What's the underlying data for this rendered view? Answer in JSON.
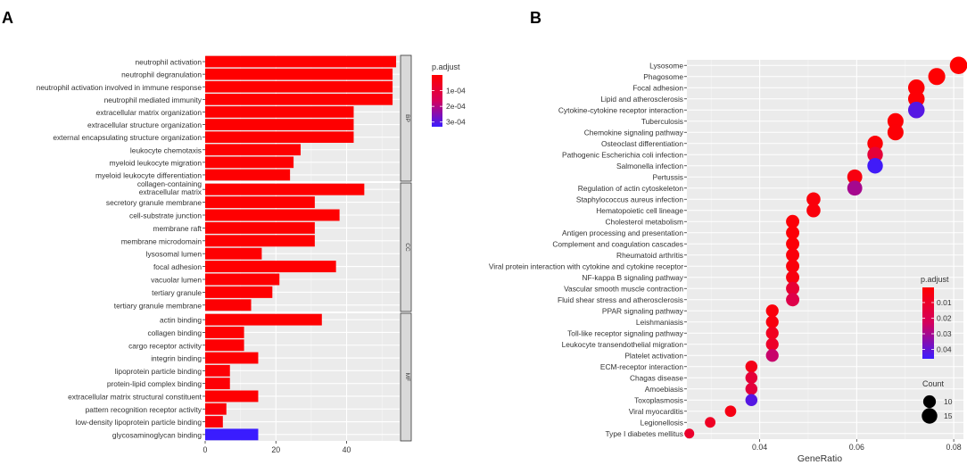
{
  "panel_labels": {
    "a": "A",
    "b": "B"
  },
  "chart_data": [
    {
      "type": "bar",
      "orientation": "horizontal",
      "panel": "A",
      "xlim": [
        0,
        55
      ],
      "xticks": [
        0,
        20,
        40
      ],
      "grid": true,
      "facets": [
        {
          "name": "BP",
          "categories": [
            "neutrophil activation",
            "neutrophil degranulation",
            "neutrophil activation involved in immune response",
            "neutrophil mediated immunity",
            "extracellular matrix organization",
            "extracellular structure organization",
            "external encapsulating structure organization",
            "leukocyte chemotaxis",
            "myeloid leukocyte migration",
            "myeloid leukocyte differentiation"
          ],
          "values": [
            54,
            53,
            53,
            53,
            42,
            42,
            42,
            27,
            25,
            24
          ],
          "p_adjust": [
            1e-07,
            1e-07,
            1e-07,
            1e-07,
            2e-06,
            2e-06,
            2e-06,
            3e-06,
            3e-06,
            3e-06
          ]
        },
        {
          "name": "CC",
          "categories": [
            "collagen-containing\nextracellular matrix",
            "secretory granule membrane",
            "cell-substrate junction",
            "membrane raft",
            "membrane microdomain",
            "lysosomal lumen",
            "focal adhesion",
            "vacuolar lumen",
            "tertiary granule",
            "tertiary granule membrane"
          ],
          "values": [
            45,
            31,
            38,
            31,
            31,
            16,
            37,
            21,
            19,
            13
          ],
          "p_adjust": [
            1e-07,
            2e-06,
            1e-06,
            2e-06,
            2e-06,
            3e-06,
            1e-06,
            4e-06,
            4e-06,
            6e-06
          ]
        },
        {
          "name": "MF",
          "categories": [
            "actin binding",
            "collagen binding",
            "cargo receptor activity",
            "integrin binding",
            "lipoprotein particle binding",
            "protein-lipid complex binding",
            "extracellular matrix structural constituent",
            "pattern recognition receptor activity",
            "low-density lipoprotein particle binding",
            "glycosaminoglycan binding"
          ],
          "values": [
            33,
            11,
            11,
            15,
            7,
            7,
            15,
            6,
            5,
            15
          ],
          "p_adjust": [
            2e-06,
            5e-06,
            5e-06,
            4e-06,
            8e-06,
            8e-06,
            4e-06,
            1.2e-05,
            1.8e-05,
            0.00033
          ]
        }
      ],
      "legend": {
        "title": "p.adjust",
        "labels": [
          "1e-04",
          "2e-04",
          "3e-04"
        ],
        "values": [
          0.0001,
          0.0002,
          0.0003
        ],
        "range": [
          0,
          0.00033
        ],
        "placement": "right"
      },
      "colors": {
        "low": "#ff0000",
        "mid": "#d4005e",
        "high": "#3a1cff"
      }
    },
    {
      "type": "scatter",
      "panel": "B",
      "xlabel": "GeneRatio",
      "xlim": [
        0.025,
        0.082
      ],
      "xticks": [
        0.04,
        0.06,
        0.08
      ],
      "xticklabels": [
        "0.04",
        "0.06",
        "0.08"
      ],
      "grid": true,
      "categories": [
        "Lysosome",
        "Phagosome",
        "Focal adhesion",
        "Lipid and atherosclerosis",
        "Cytokine-cytokine receptor interaction",
        "Tuberculosis",
        "Chemokine signaling pathway",
        "Osteoclast differentiation",
        "Pathogenic Escherichia coli infection",
        "Salmonella infection",
        "Pertussis",
        "Regulation of actin cytoskeleton",
        "Staphylococcus aureus infection",
        "Hematopoietic cell lineage",
        "Cholesterol metabolism",
        "Antigen processing and presentation",
        "Complement and coagulation cascades",
        "Rheumatoid arthritis",
        "Viral protein interaction with cytokine and cytokine receptor",
        "NF-kappa B signaling pathway",
        "Vascular smooth muscle contraction",
        "Fluid shear stress and atherosclerosis",
        "PPAR signaling pathway",
        "Leishmaniasis",
        "Toll-like receptor signaling pathway",
        "Leukocyte transendothelial migration",
        "Platelet activation",
        "ECM-receptor interaction",
        "Chagas disease",
        "Amoebiasis",
        "Toxoplasmosis",
        "Viral myocarditis",
        "Legionellosis",
        "Type I diabetes mellitus"
      ],
      "gene_ratio": [
        0.081,
        0.0765,
        0.0723,
        0.0723,
        0.0723,
        0.068,
        0.068,
        0.0638,
        0.0638,
        0.0638,
        0.0596,
        0.0596,
        0.0511,
        0.0511,
        0.0468,
        0.0468,
        0.0468,
        0.0468,
        0.0468,
        0.0468,
        0.0468,
        0.0468,
        0.0426,
        0.0426,
        0.0426,
        0.0426,
        0.0426,
        0.0383,
        0.0383,
        0.0383,
        0.0383,
        0.034,
        0.0298,
        0.0255
      ],
      "count": [
        19,
        18,
        17,
        17,
        17,
        16,
        16,
        15,
        15,
        15,
        14,
        14,
        12,
        12,
        11,
        11,
        11,
        11,
        11,
        11,
        11,
        11,
        10,
        10,
        10,
        10,
        10,
        9,
        9,
        9,
        9,
        8,
        7,
        6
      ],
      "p_adjust": [
        0.0003,
        0.0008,
        0.0012,
        0.0015,
        0.042,
        0.0015,
        0.0018,
        0.002,
        0.014,
        0.045,
        0.004,
        0.03,
        0.003,
        0.003,
        0.002,
        0.002,
        0.002,
        0.003,
        0.003,
        0.004,
        0.013,
        0.018,
        0.003,
        0.004,
        0.008,
        0.01,
        0.025,
        0.006,
        0.014,
        0.015,
        0.042,
        0.005,
        0.009,
        0.011
      ],
      "color_legend": {
        "title": "p.adjust",
        "labels": [
          "0.01",
          "0.02",
          "0.03",
          "0.04"
        ],
        "values": [
          0.01,
          0.02,
          0.03,
          0.04
        ],
        "range": [
          0.0003,
          0.046
        ],
        "placement": "right"
      },
      "size_legend": {
        "title": "Count",
        "labels": [
          "10",
          "15"
        ],
        "values": [
          10,
          15
        ],
        "placement": "bottom-right"
      },
      "colors": {
        "low": "#ff0000",
        "mid": "#d4005e",
        "high": "#3a1cff"
      }
    }
  ]
}
